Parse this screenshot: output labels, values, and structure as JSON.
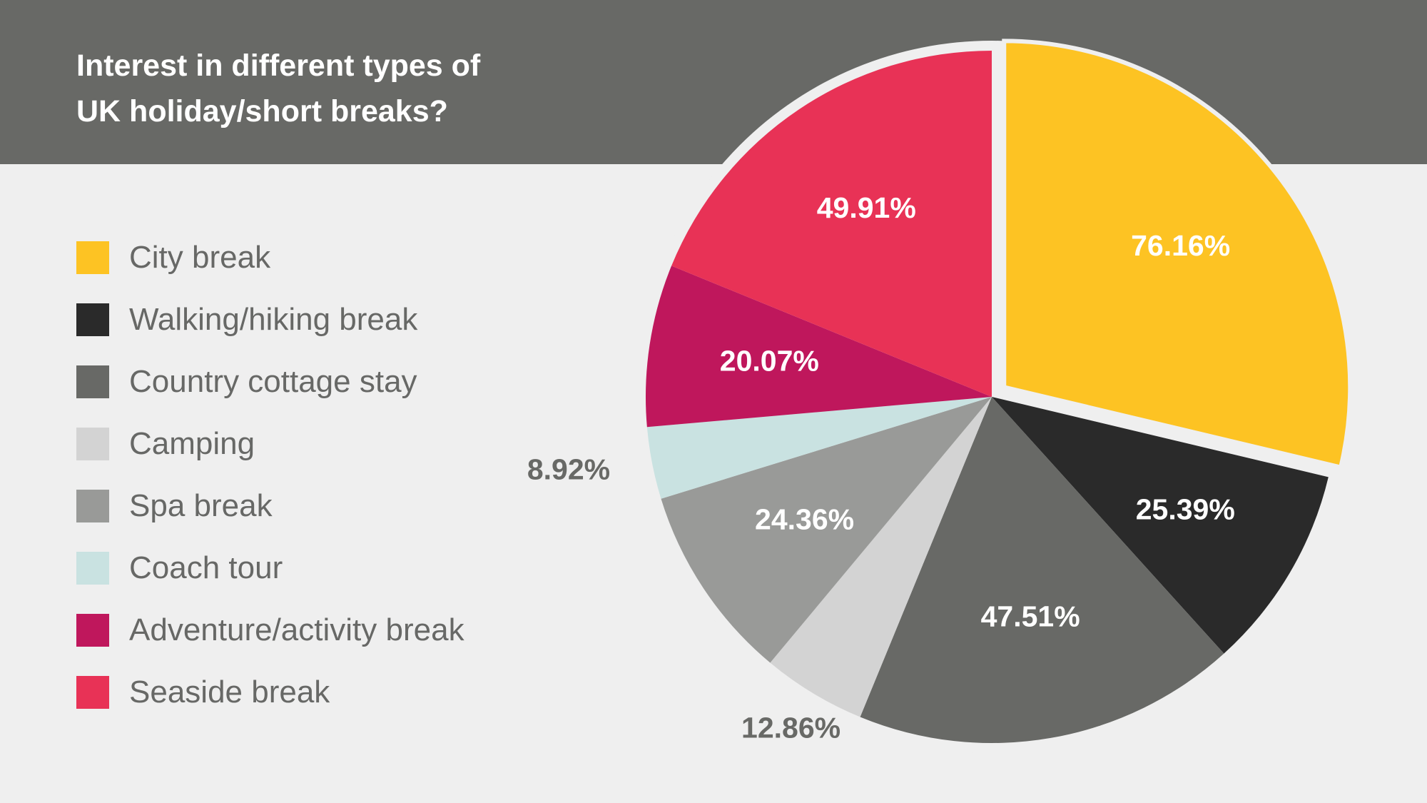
{
  "chart_data": {
    "type": "pie",
    "title": "Interest in different types of UK holiday/short breaks?",
    "title_lines": [
      "Interest in different types of",
      "UK holiday/short breaks?"
    ],
    "legend_position": "left",
    "slices": [
      {
        "label": "City break",
        "value": 76.16,
        "value_label": "76.16%",
        "color": "#fdc323",
        "exploded": true,
        "label_inside": true
      },
      {
        "label": "Walking/hiking break",
        "value": 25.39,
        "value_label": "25.39%",
        "color": "#2a2a2a",
        "label_inside": true
      },
      {
        "label": "Country cottage stay",
        "value": 47.51,
        "value_label": "47.51%",
        "color": "#686966",
        "label_inside": true
      },
      {
        "label": "Camping",
        "value": 12.86,
        "value_label": "12.86%",
        "color": "#d3d3d3",
        "label_inside": false
      },
      {
        "label": "Spa break",
        "value": 24.36,
        "value_label": "24.36%",
        "color": "#999a98",
        "label_inside": true
      },
      {
        "label": "Coach tour",
        "value": 8.92,
        "value_label": "8.92%",
        "color": "#c9e2e1",
        "label_inside": false
      },
      {
        "label": "Adventure/activity break",
        "value": 20.07,
        "value_label": "20.07%",
        "color": "#bf175c",
        "label_inside": true
      },
      {
        "label": "Seaside break",
        "value": 49.91,
        "value_label": "49.91%",
        "color": "#e83256",
        "label_inside": true
      }
    ],
    "colors": {
      "header_band": "#686966",
      "background": "#efefef",
      "inside_label": "#ffffff",
      "outside_label": "#686966"
    }
  }
}
